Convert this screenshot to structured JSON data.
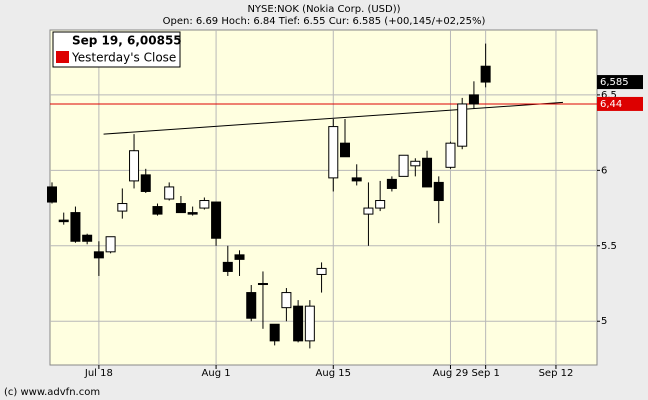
{
  "chart_data": {
    "type": "candlestick",
    "title": "NYSE:NOK (Nokia Corp. (USD))",
    "subtitle": "Open: 6.69 Hoch: 6.84 Tief: 6.55 Cur: 6.585 (+00,145/+02,25%)",
    "legend_header": "Sep 19, 6,00855",
    "source": "(c) www.advfn.com",
    "categories": [
      null,
      null,
      null,
      null,
      "Jul 18",
      null,
      null,
      null,
      null,
      null,
      null,
      null,
      null,
      null,
      "Aug 1",
      null,
      null,
      null,
      null,
      null,
      null,
      null,
      null,
      null,
      "Aug 15",
      null,
      null,
      null,
      null,
      null,
      null,
      null,
      null,
      null,
      "Aug 29",
      null,
      null,
      "Sep 1",
      null,
      null,
      null,
      null,
      null,
      "Sep 12",
      null,
      null,
      null
    ],
    "open": [
      5.89,
      5.67,
      5.72,
      5.57,
      5.46,
      5.46,
      5.73,
      5.93,
      5.97,
      5.76,
      5.81,
      5.78,
      5.72,
      5.75,
      5.79,
      5.39,
      5.44,
      5.19,
      5.25,
      4.98,
      5.09,
      5.1,
      4.87,
      5.31,
      5.95,
      6.18,
      5.95,
      5.71,
      5.75,
      5.94,
      5.96,
      6.03,
      6.08,
      5.92,
      6.02,
      6.16,
      6.5,
      6.69,
      null,
      null,
      null,
      null,
      null,
      null,
      null,
      null,
      null
    ],
    "high": [
      5.92,
      5.72,
      5.76,
      5.58,
      5.53,
      5.56,
      5.88,
      6.24,
      6.01,
      5.78,
      5.92,
      5.83,
      5.76,
      5.82,
      5.79,
      5.5,
      5.47,
      5.24,
      5.33,
      4.98,
      5.22,
      5.14,
      5.14,
      5.39,
      6.34,
      6.34,
      6.04,
      5.92,
      5.93,
      5.96,
      6.1,
      6.08,
      6.13,
      5.96,
      6.19,
      6.48,
      6.59,
      6.84,
      null,
      null,
      null,
      null,
      null,
      null,
      null,
      null,
      null
    ],
    "low": [
      5.78,
      5.64,
      5.52,
      5.51,
      5.3,
      5.45,
      5.68,
      5.88,
      5.85,
      5.7,
      5.8,
      5.72,
      5.7,
      5.74,
      5.5,
      5.3,
      5.3,
      5.0,
      4.95,
      4.84,
      5.0,
      4.86,
      4.82,
      5.19,
      5.86,
      6.09,
      5.9,
      5.5,
      5.73,
      5.86,
      5.96,
      5.96,
      5.89,
      5.65,
      6.01,
      6.14,
      6.41,
      6.55,
      null,
      null,
      null,
      null,
      null,
      null,
      null,
      null,
      null
    ],
    "close": [
      5.79,
      5.66,
      5.53,
      5.53,
      5.42,
      5.56,
      5.78,
      6.13,
      5.86,
      5.71,
      5.89,
      5.72,
      5.71,
      5.8,
      5.55,
      5.33,
      5.41,
      5.02,
      5.25,
      4.87,
      5.19,
      4.87,
      5.1,
      5.35,
      6.29,
      6.09,
      5.93,
      5.75,
      5.8,
      5.88,
      6.1,
      6.06,
      5.89,
      5.8,
      6.18,
      6.44,
      6.44,
      6.585,
      null,
      null,
      null,
      null,
      null,
      null,
      null,
      null,
      null
    ],
    "up_color": "#ffffff",
    "down_color": "#000000",
    "ylim": [
      4.71,
      6.93
    ],
    "yticks": [
      5,
      5.5,
      6,
      6.5
    ],
    "grid": true,
    "reference_line": {
      "name": "Yesterday's Close",
      "value": 6.44,
      "label": "6,44",
      "color": "#dd0000"
    },
    "current_tag": {
      "value": 6.585,
      "label": "6,585"
    },
    "trendline": {
      "x": [
        4.4,
        43.6
      ],
      "values": [
        6.24,
        6.45
      ]
    }
  }
}
